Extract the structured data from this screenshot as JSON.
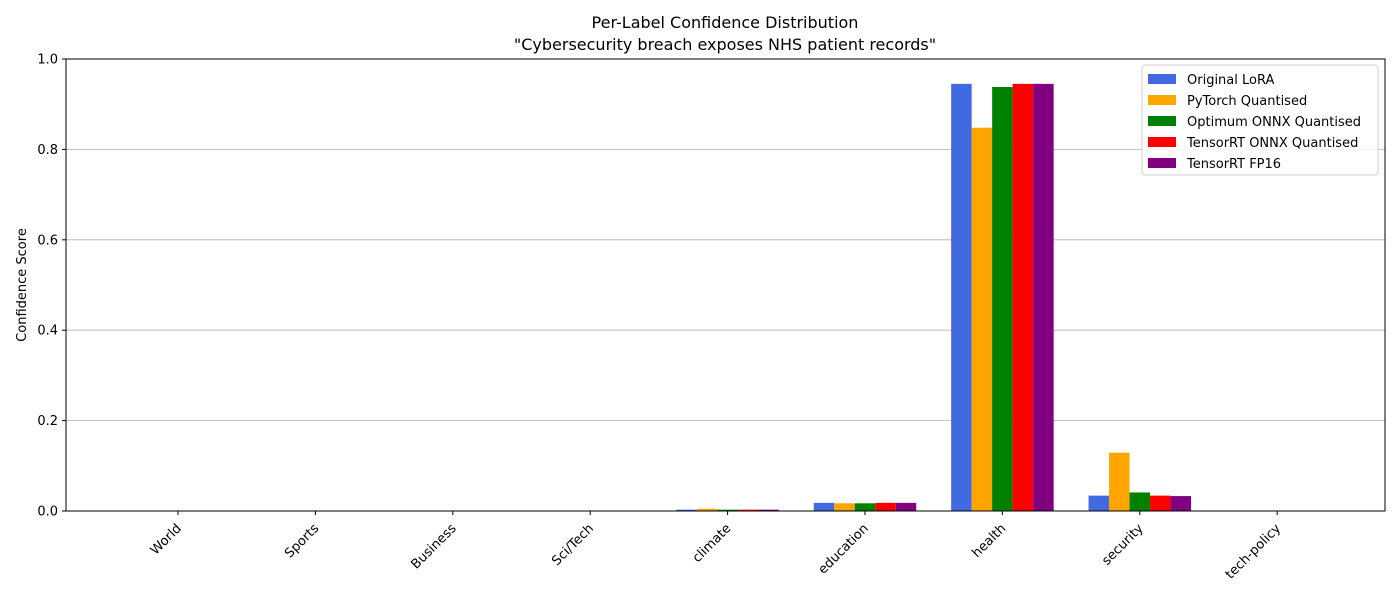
{
  "chart_data": {
    "type": "bar",
    "title": "Per-Label Confidence Distribution",
    "subtitle": "\"Cybersecurity breach exposes NHS patient records\"",
    "xlabel": "",
    "ylabel": "Confidence Score",
    "ylim": [
      0,
      1.0
    ],
    "yticks": [
      "0.0",
      "0.2",
      "0.4",
      "0.6",
      "0.8",
      "1.0"
    ],
    "grid": "y-major",
    "legend_position": "top-right",
    "categories": [
      "World",
      "Sports",
      "Business",
      "Sci/Tech",
      "climate",
      "education",
      "health",
      "security",
      "tech-policy"
    ],
    "series": [
      {
        "name": "Original LoRA",
        "color": "#4169e1",
        "values": [
          0.0,
          0.0,
          0.0,
          0.0,
          0.003,
          0.018,
          0.945,
          0.034,
          0.0
        ]
      },
      {
        "name": "PyTorch Quantised",
        "color": "#ffa500",
        "values": [
          0.0,
          0.0,
          0.0,
          0.0,
          0.005,
          0.017,
          0.848,
          0.129,
          0.0
        ]
      },
      {
        "name": "Optimum ONNX Quantised",
        "color": "#008000",
        "values": [
          0.0,
          0.0,
          0.0,
          0.0,
          0.003,
          0.017,
          0.938,
          0.041,
          0.0
        ]
      },
      {
        "name": "TensorRT ONNX Quantised",
        "color": "#ff0000",
        "values": [
          0.0,
          0.0,
          0.0,
          0.0,
          0.003,
          0.018,
          0.945,
          0.034,
          0.0
        ]
      },
      {
        "name": "TensorRT FP16",
        "color": "#800080",
        "values": [
          0.0,
          0.0,
          0.0,
          0.0,
          0.003,
          0.018,
          0.945,
          0.033,
          0.0
        ]
      }
    ]
  }
}
